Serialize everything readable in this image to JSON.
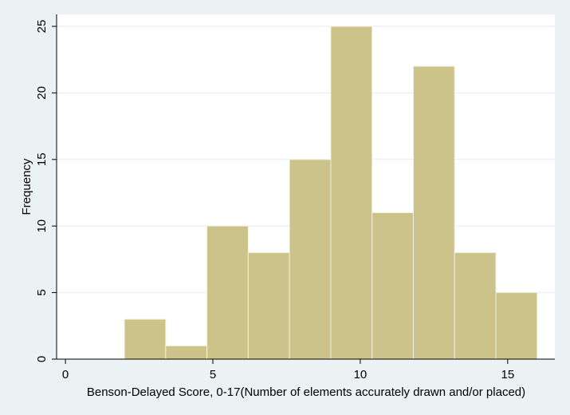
{
  "chart_data": {
    "type": "bar",
    "histogram": true,
    "xlabel": "Benson-Delayed Score, 0-17(Number of elements accurately drawn and/or placed)",
    "ylabel": "Frequency",
    "xlim": [
      -0.3,
      16.6
    ],
    "ylim": [
      0,
      25.9
    ],
    "xticks": [
      0,
      5,
      10,
      15
    ],
    "yticks": [
      0,
      5,
      10,
      15,
      20,
      25
    ],
    "grid": true,
    "bins": [
      {
        "start": 2.0,
        "end": 3.4,
        "value": 3
      },
      {
        "start": 3.4,
        "end": 4.8,
        "value": 1
      },
      {
        "start": 4.8,
        "end": 6.2,
        "value": 10
      },
      {
        "start": 6.2,
        "end": 7.6,
        "value": 8
      },
      {
        "start": 7.6,
        "end": 9.0,
        "value": 15
      },
      {
        "start": 9.0,
        "end": 10.4,
        "value": 25
      },
      {
        "start": 10.4,
        "end": 11.8,
        "value": 11
      },
      {
        "start": 11.8,
        "end": 13.2,
        "value": 22
      },
      {
        "start": 13.2,
        "end": 14.6,
        "value": 8
      },
      {
        "start": 14.6,
        "end": 16.0,
        "value": 5
      }
    ],
    "colors": {
      "bar": "#ccc38a",
      "bar_edge": "#f2f0e0",
      "plot_bg": "#ffffff",
      "page_bg": "#eaf2f3"
    }
  }
}
